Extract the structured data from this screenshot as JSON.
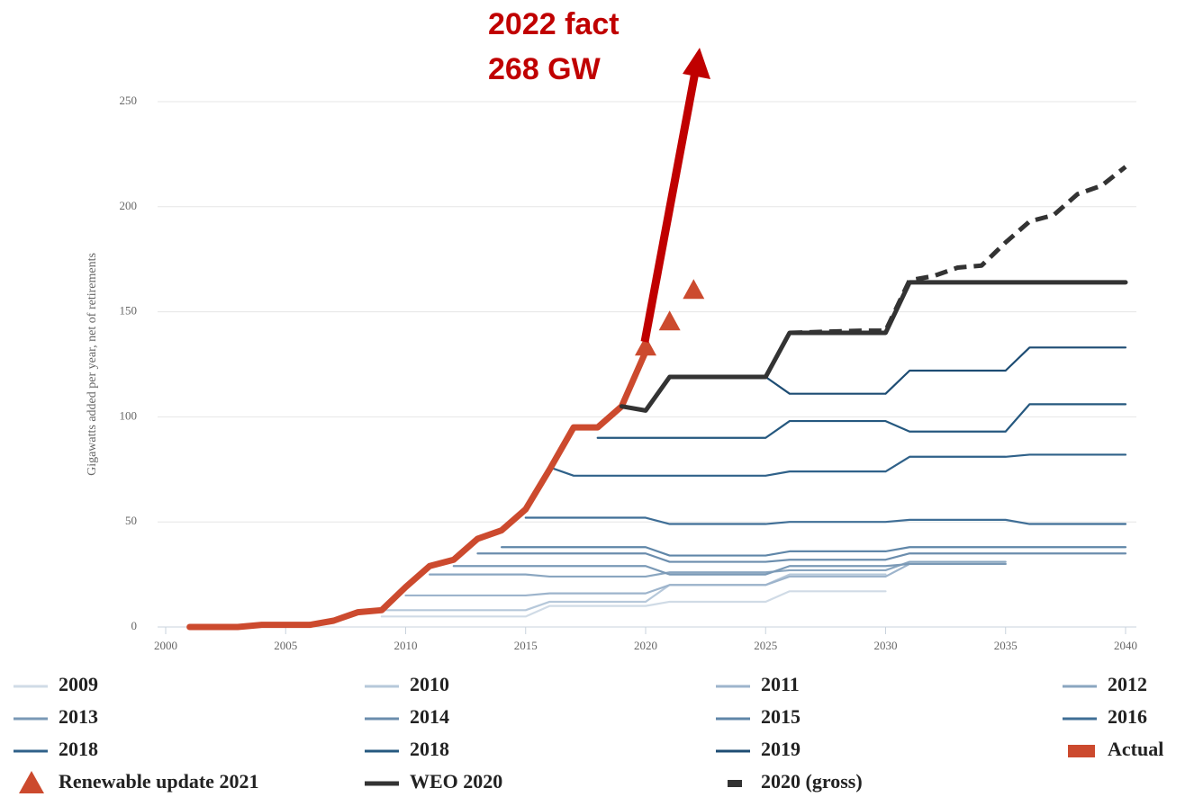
{
  "chart_data": {
    "type": "line",
    "y_label": "Gigawatts added per year, net of retirements",
    "annotations": [
      "2022 fact",
      "268 GW"
    ],
    "xlim": [
      2000,
      2040
    ],
    "xticks": [
      2000,
      2005,
      2010,
      2015,
      2020,
      2025,
      2030,
      2035,
      2040
    ],
    "ylim": [
      0,
      250
    ],
    "yticks": [
      0,
      50,
      100,
      150,
      200,
      250
    ],
    "grid": true,
    "legend": "bottom",
    "series": [
      {
        "name": "2009",
        "color": "#d0dbe6",
        "style": "thin",
        "x": [
          2009,
          2015,
          2016,
          2020,
          2021,
          2025,
          2026,
          2030
        ],
        "values": [
          5,
          5,
          10,
          10,
          12,
          12,
          17,
          17
        ]
      },
      {
        "name": "2010",
        "color": "#b6c8da",
        "style": "thin",
        "x": [
          2009,
          2015,
          2016,
          2020,
          2021,
          2025,
          2026,
          2030
        ],
        "values": [
          8,
          8,
          12,
          12,
          20,
          20,
          25,
          25
        ]
      },
      {
        "name": "2011",
        "color": "#9db4cc",
        "style": "thin",
        "x": [
          2010,
          2015,
          2016,
          2020,
          2021,
          2025,
          2026,
          2030,
          2031,
          2035
        ],
        "values": [
          15,
          15,
          16,
          16,
          20,
          20,
          24,
          24,
          30,
          30
        ]
      },
      {
        "name": "2012",
        "color": "#8aa6c0",
        "style": "thin",
        "x": [
          2011,
          2015,
          2016,
          2020,
          2021,
          2025,
          2026,
          2030,
          2031,
          2035
        ],
        "values": [
          25,
          25,
          24,
          24,
          26,
          26,
          27,
          27,
          31,
          31
        ]
      },
      {
        "name": "2013",
        "color": "#7a99b6",
        "style": "thin",
        "x": [
          2012,
          2020,
          2021,
          2025,
          2026,
          2030,
          2031,
          2035
        ],
        "values": [
          29,
          29,
          25,
          25,
          29,
          29,
          30,
          30
        ]
      },
      {
        "name": "2014",
        "color": "#6b8dad",
        "style": "thin",
        "x": [
          2013,
          2020,
          2021,
          2025,
          2026,
          2030,
          2031,
          2040
        ],
        "values": [
          35,
          35,
          31,
          31,
          32,
          32,
          35,
          35
        ]
      },
      {
        "name": "2015",
        "color": "#5f86a8",
        "style": "thin",
        "x": [
          2014,
          2020,
          2021,
          2025,
          2026,
          2030,
          2031,
          2040
        ],
        "values": [
          38,
          38,
          34,
          34,
          36,
          36,
          38,
          38
        ]
      },
      {
        "name": "2016",
        "color": "#3f6e96",
        "style": "thin",
        "x": [
          2015,
          2020,
          2021,
          2025,
          2026,
          2030,
          2031,
          2035,
          2036,
          2040
        ],
        "values": [
          52,
          52,
          49,
          49,
          50,
          50,
          51,
          51,
          49,
          49
        ]
      },
      {
        "name": "2018",
        "color": "#2f6189",
        "style": "thin",
        "x": [
          2016,
          2017,
          2025,
          2026,
          2030,
          2031,
          2035,
          2036,
          2040
        ],
        "values": [
          76,
          72,
          72,
          74,
          74,
          81,
          81,
          82,
          82
        ]
      },
      {
        "name": "2018",
        "color": "#25587f",
        "style": "thin",
        "x": [
          2018,
          2025,
          2026,
          2030,
          2031,
          2035,
          2036,
          2040
        ],
        "values": [
          90,
          90,
          98,
          98,
          93,
          93,
          106,
          106
        ]
      },
      {
        "name": "2019",
        "color": "#1d4c73",
        "style": "thin",
        "x": [
          2021,
          2025,
          2026,
          2030,
          2031,
          2035,
          2036,
          2040
        ],
        "values": [
          119,
          119,
          111,
          111,
          122,
          122,
          133,
          133
        ]
      },
      {
        "name": "Actual",
        "color": "#cc4a2e",
        "style": "thick",
        "x": [
          2001,
          2002,
          2003,
          2004,
          2005,
          2006,
          2007,
          2008,
          2009,
          2010,
          2011,
          2012,
          2013,
          2014,
          2015,
          2016,
          2017,
          2018,
          2019,
          2020
        ],
        "values": [
          0,
          0,
          0,
          1,
          1,
          1,
          3,
          7,
          8,
          19,
          29,
          32,
          42,
          46,
          56,
          75,
          95,
          95,
          105,
          131
        ]
      },
      {
        "name": "Renewable update 2021",
        "color": "#cc4a2e",
        "style": "markers",
        "x": [
          2020,
          2021,
          2022
        ],
        "values": [
          133,
          145,
          160
        ]
      },
      {
        "name": "WEO 2020",
        "color": "#333333",
        "style": "bold",
        "x": [
          2019,
          2020,
          2021,
          2025,
          2026,
          2030,
          2031,
          2040
        ],
        "values": [
          105,
          103,
          119,
          119,
          140,
          140,
          164,
          164
        ]
      },
      {
        "name": "2020 (gross)",
        "color": "#333333",
        "style": "dashed",
        "x": [
          2026,
          2029,
          2030,
          2031,
          2032,
          2033,
          2034,
          2035,
          2036,
          2037,
          2038,
          2039,
          2040
        ],
        "values": [
          140,
          141,
          141,
          165,
          167,
          171,
          172,
          183,
          193,
          196,
          206,
          210,
          219
        ]
      }
    ]
  }
}
